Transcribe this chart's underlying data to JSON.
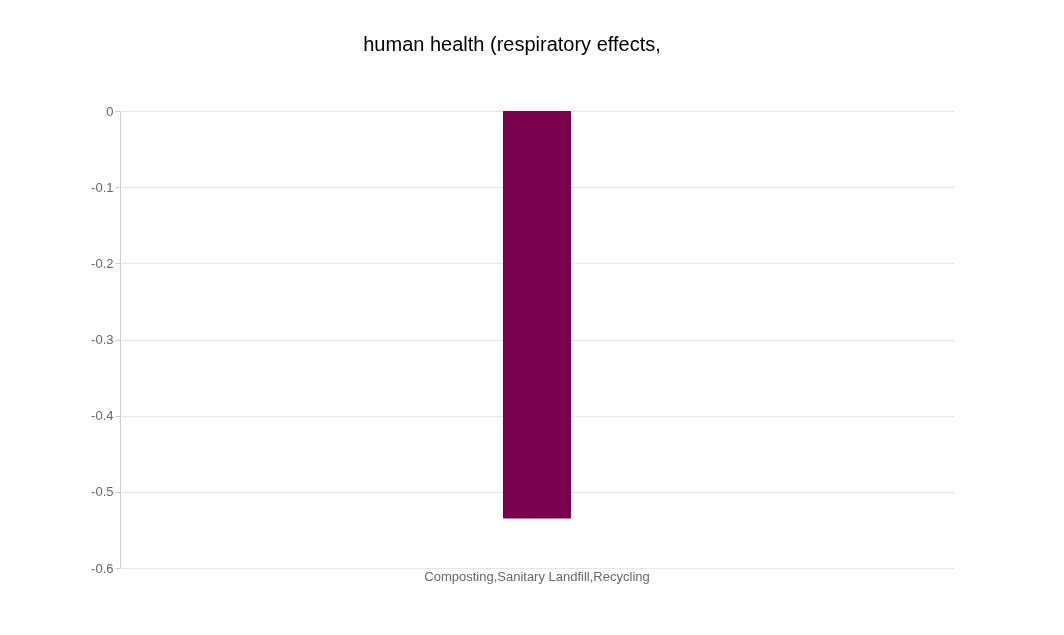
{
  "chart_data": {
    "type": "bar",
    "title": "human health (respiratory effects,",
    "categories": [
      "Composting,Sanitary Landfill,Recycling"
    ],
    "values": [
      -0.535
    ],
    "color": "#7b004c",
    "ylim": [
      -0.6,
      0
    ],
    "yticks": [
      -0.6,
      -0.5,
      -0.4,
      -0.3,
      -0.2,
      -0.1,
      0
    ],
    "grid": "y"
  }
}
